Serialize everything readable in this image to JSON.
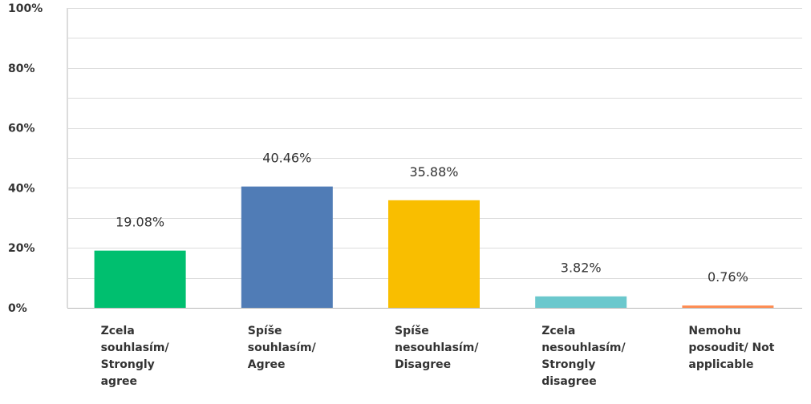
{
  "chart_data": {
    "type": "bar",
    "categories": [
      "Zcela souhlasím/ Strongly agree",
      "Spíše souhlasím/ Agree",
      "Spíše nesouhlasím/ Disagree",
      "Zcela nesouhlasím/ Strongly disagree",
      "Nemohu posoudit/ Not applicable"
    ],
    "category_lines": [
      [
        "Zcela",
        "souhlasím/",
        "Strongly",
        "agree"
      ],
      [
        "Spíše",
        "souhlasím/",
        "Agree"
      ],
      [
        "Spíše",
        "nesouhlasím/",
        "Disagree"
      ],
      [
        "Zcela",
        "nesouhlasím/",
        "Strongly",
        "disagree"
      ],
      [
        "Nemohu",
        "posoudit/ Not",
        "applicable"
      ]
    ],
    "values": [
      19.08,
      40.46,
      35.88,
      3.82,
      0.76
    ],
    "data_labels": [
      "19.08%",
      "40.46%",
      "35.88%",
      "3.82%",
      "0.76%"
    ],
    "colors": [
      "#00bf6f",
      "#507cb6",
      "#f9be00",
      "#6bc8cd",
      "#ff8b4f"
    ],
    "yticks": [
      0,
      20,
      40,
      60,
      80,
      100
    ],
    "ytick_labels": [
      "0%",
      "20%",
      "40%",
      "60%",
      "80%",
      "100%"
    ],
    "ylim": [
      0,
      100
    ],
    "grid": true
  }
}
